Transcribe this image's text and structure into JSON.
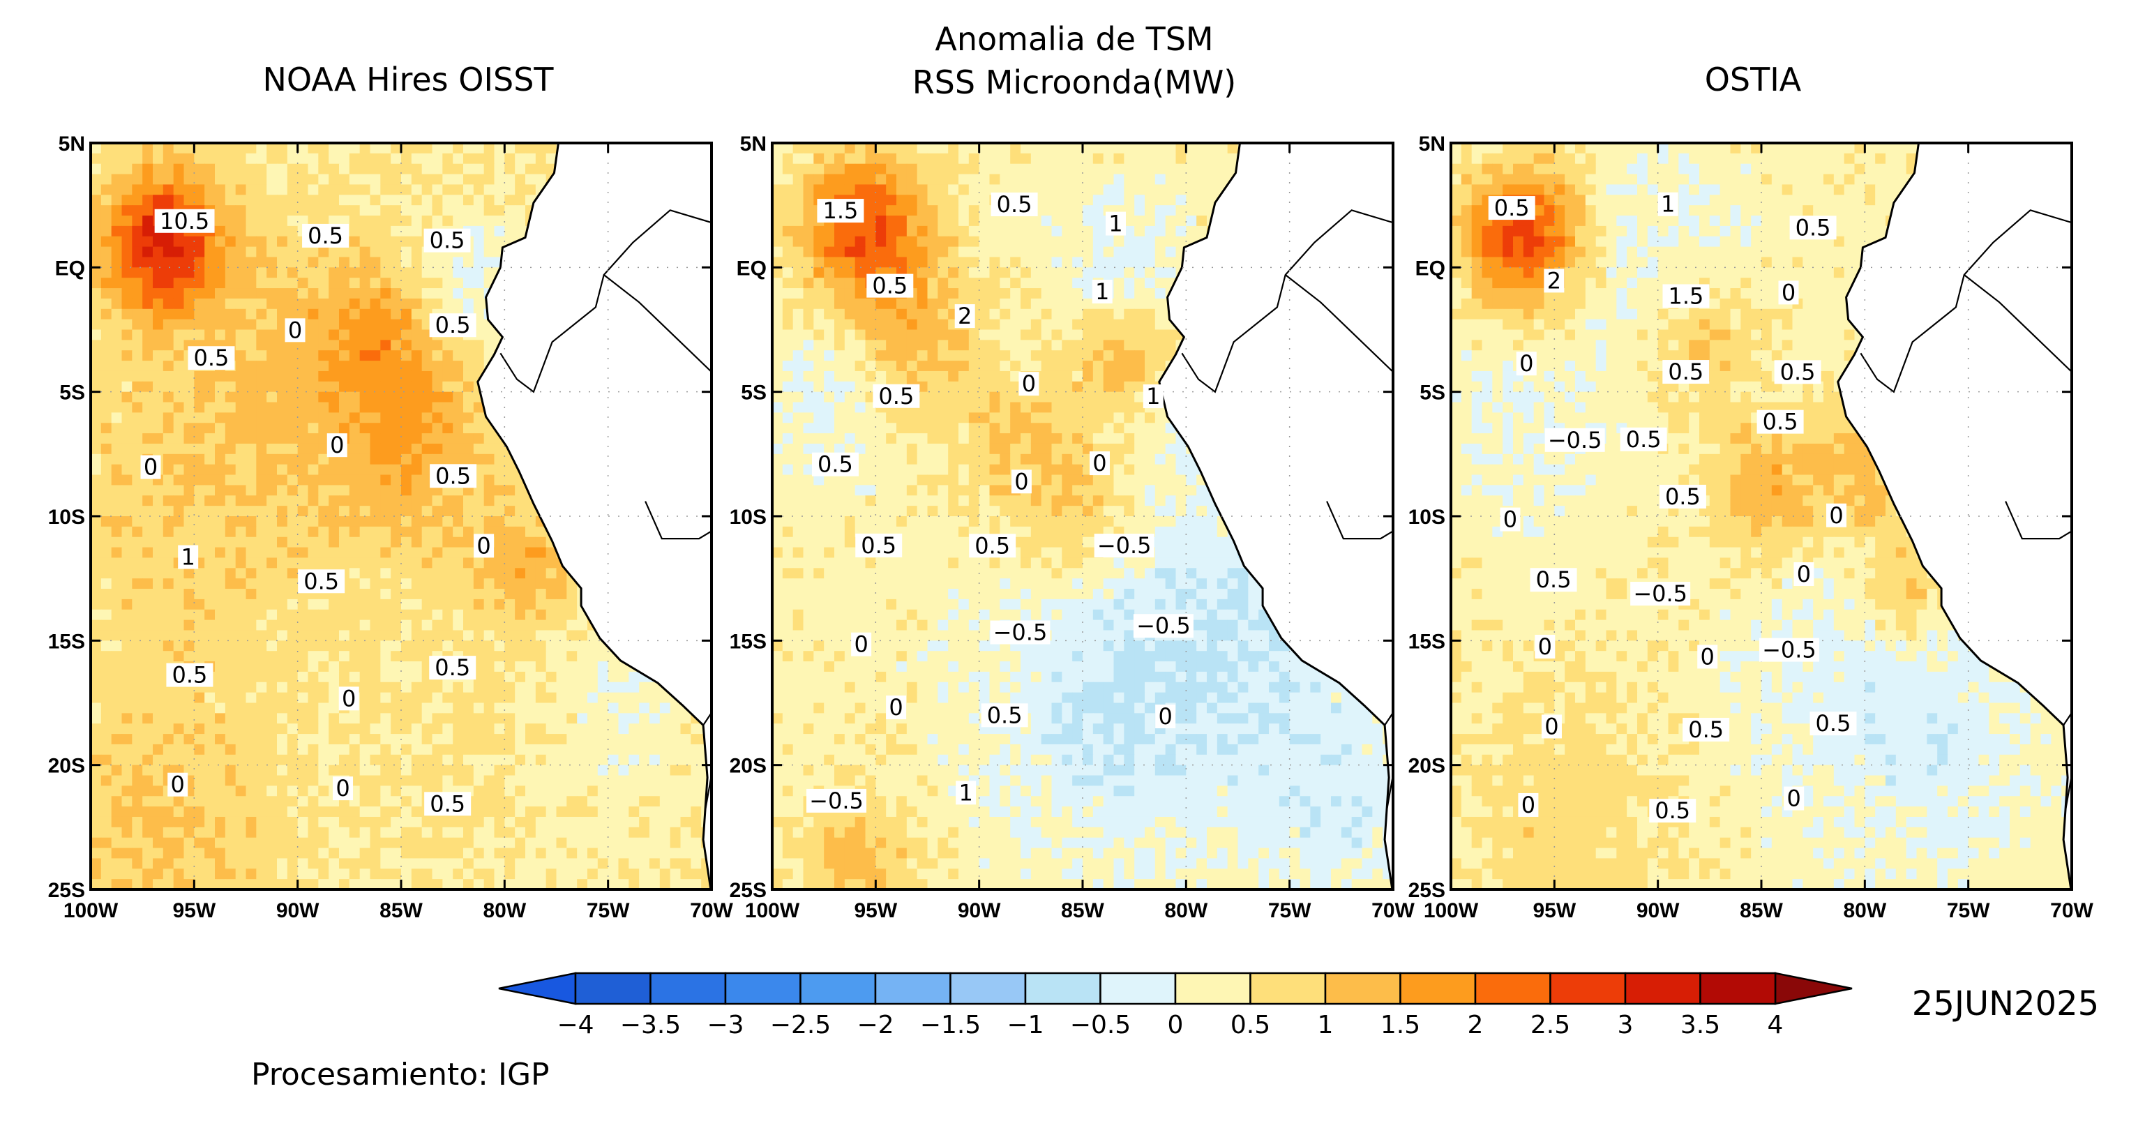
{
  "figure": {
    "main_title": [
      "Anomalia de TSM",
      "RSS Microonda(MW)"
    ],
    "panels": [
      {
        "title": "NOAA Hires OISST",
        "seed": 11,
        "labels": [
          "10.5",
          "0.5",
          "0.5",
          "0.5",
          "0",
          "0.5",
          "0",
          "0",
          "0.5",
          "1",
          "0.5",
          "0",
          "0.5",
          "0",
          "0.5",
          "0",
          "0",
          "0.5"
        ]
      },
      {
        "title": "",
        "seed": 23,
        "labels": [
          "1.5",
          "0.5",
          "1",
          "0.5",
          "2",
          "1",
          "0.5",
          "0",
          "1",
          "0.5",
          "0",
          "0",
          "0.5",
          "0.5",
          "-0.5",
          "0",
          "-0.5",
          "-0.5",
          "0",
          "0.5",
          "0",
          "-0.5",
          "1"
        ]
      },
      {
        "title": "OSTIA",
        "seed": 37,
        "labels": [
          "0.5",
          "1",
          "0.5",
          "2",
          "1.5",
          "0",
          "0",
          "0.5",
          "0.5",
          "-0.5",
          "0.5",
          "0.5",
          "0",
          "0.5",
          "0",
          "0.5",
          "-0.5",
          "0",
          "0",
          "0",
          "-0.5",
          "0",
          "0.5",
          "0.5",
          "0",
          "0.5",
          "0"
        ]
      }
    ],
    "lat_ticks": [
      "5N",
      "EQ",
      "5S",
      "10S",
      "15S",
      "20S",
      "25S"
    ],
    "lon_ticks": [
      "100W",
      "95W",
      "90W",
      "85W",
      "80W",
      "75W",
      "70W"
    ],
    "colorbar": {
      "levels": [
        "-4",
        "-3.5",
        "-3",
        "-2.5",
        "-2",
        "-1.5",
        "-1",
        "-0.5",
        "0",
        "0.5",
        "1",
        "1.5",
        "2",
        "2.5",
        "3",
        "3.5",
        "4"
      ],
      "colors": [
        "#1f5fd6",
        "#2b73e4",
        "#3b88ec",
        "#4d9bf0",
        "#75b3f4",
        "#98c8f6",
        "#b9e3f5",
        "#dff4fb",
        "#fef6b4",
        "#fedf7a",
        "#fdbd4a",
        "#fd9c1e",
        "#fa6c0c",
        "#ed3d08",
        "#d71e05",
        "#b20a05"
      ],
      "under_color": "#1858e0",
      "over_color": "#8a0808"
    },
    "date": "25JUN2025",
    "credit": "Procesamiento: IGP"
  },
  "chart_data": {
    "type": "heatmap",
    "variable": "Anomalia de TSM",
    "xlim": [
      "100W",
      "70W"
    ],
    "ylim": [
      "25S",
      "5N"
    ],
    "levels": [
      -4,
      -3.5,
      -3,
      -2.5,
      -2,
      -1.5,
      -1,
      -0.5,
      0,
      0.5,
      1,
      1.5,
      2,
      2.5,
      3,
      3.5,
      4
    ]
  }
}
